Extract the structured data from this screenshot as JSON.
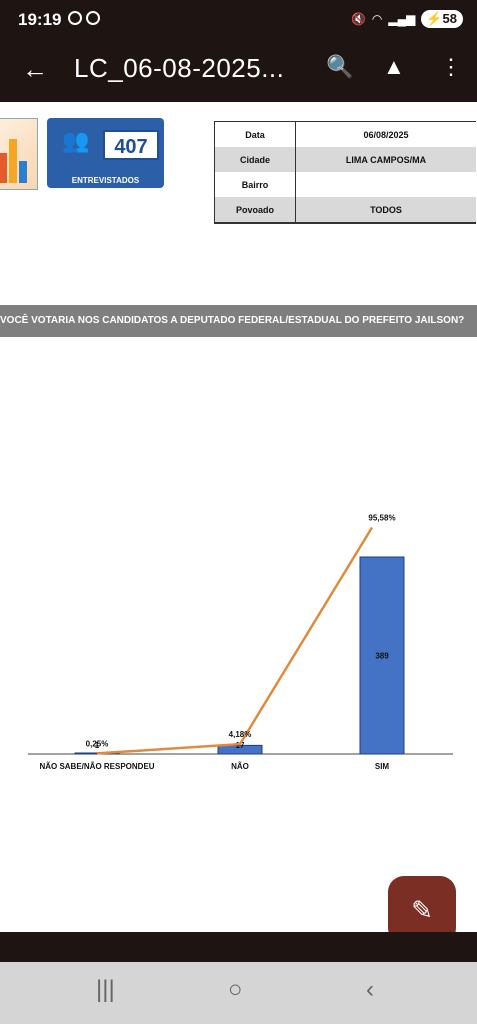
{
  "status_bar": {
    "time": "19:19",
    "battery": "58"
  },
  "app_bar": {
    "title": "LC_06-08-2025...",
    "back_icon": "arrow-left-icon",
    "find_icon": "find-in-page-icon",
    "drive_icon": "add-to-drive-icon",
    "menu_icon": "more-vert-icon"
  },
  "header": {
    "interviewed_count": "407",
    "interviewed_label": "ENTREVISTADOS",
    "info": [
      {
        "key": "Data",
        "value": "06/08/2025"
      },
      {
        "key": "Cidade",
        "value": "LIMA CAMPOS/MA"
      },
      {
        "key": "Bairro",
        "value": ""
      },
      {
        "key": "Povoado",
        "value": "TODOS"
      }
    ]
  },
  "question": "VOCÊ VOTARIA NOS CANDIDATOS A DEPUTADO FEDERAL/ESTADUAL DO PREFEITO JAILSON?",
  "chart_data": {
    "type": "bar",
    "title": "",
    "xlabel": "",
    "ylabel": "",
    "categories": [
      "NÃO SABE/NÃO RESPONDEU",
      "NÃO",
      "SIM"
    ],
    "values": [
      1,
      17,
      389
    ],
    "percent_labels": [
      "0,25%",
      "4,18%",
      "95,58%"
    ],
    "percentages": [
      0.25,
      4.18,
      95.58
    ],
    "line_overlay": true,
    "colors": {
      "bar": "#4472c4",
      "line": "#e08a3c"
    }
  },
  "fab_icon": "edit-pen-icon"
}
